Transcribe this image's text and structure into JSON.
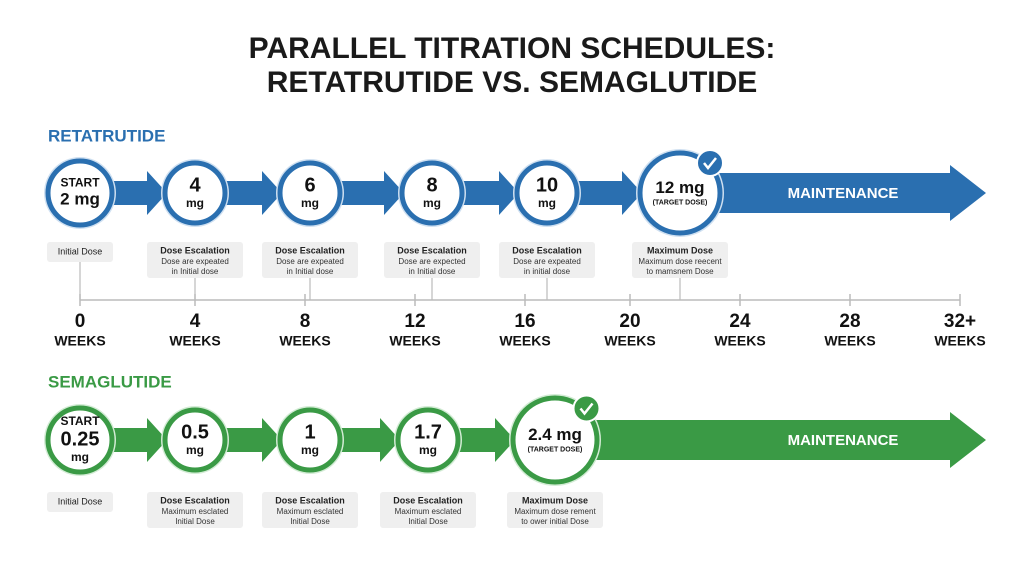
{
  "title": [
    "PARALLEL TITRATION SCHEDULES:",
    "RETATRUTIDE VS. SEMAGLUTIDE"
  ],
  "timeline": [
    {
      "number": "0",
      "unit": "WEEKS"
    },
    {
      "number": "4",
      "unit": "WEEKS"
    },
    {
      "number": "8",
      "unit": "WEEKS"
    },
    {
      "number": "12",
      "unit": "WEEKS"
    },
    {
      "number": "16",
      "unit": "WEEKS"
    },
    {
      "number": "20",
      "unit": "WEEKS"
    },
    {
      "number": "24",
      "unit": "WEEKS"
    },
    {
      "number": "28",
      "unit": "WEEKS"
    },
    {
      "number": "32+",
      "unit": "WEEKS"
    }
  ],
  "schedules": [
    {
      "name": "RETATRUTIDE",
      "maintenance": "MAINTENANCE",
      "steps": [
        {
          "lines": [
            "START",
            "2 mg"
          ],
          "note": {
            "title": "Initial Dose",
            "lines": []
          }
        },
        {
          "lines": [
            "4",
            "mg"
          ],
          "note": {
            "title": "Dose Escalation",
            "lines": [
              "Dose are expeated",
              "in Initial dose"
            ]
          }
        },
        {
          "lines": [
            "6",
            "mg"
          ],
          "note": {
            "title": "Dose Escalation",
            "lines": [
              "Dose are expeated",
              "in Initial dose"
            ]
          }
        },
        {
          "lines": [
            "8",
            "mg"
          ],
          "note": {
            "title": "Dose Escalation",
            "lines": [
              "Dose are expected",
              "in Initial dose"
            ]
          }
        },
        {
          "lines": [
            "10",
            "mg"
          ],
          "note": {
            "title": "Dose Escalation",
            "lines": [
              "Dose are expeated",
              "in initial dose"
            ]
          }
        },
        {
          "lines": [
            "12 mg",
            "(TARGET DOSE)"
          ],
          "note": {
            "title": "Maximum Dose",
            "lines": [
              "Maximum dose reecent",
              "to mamsnem Dose"
            ]
          }
        }
      ]
    },
    {
      "name": "SEMAGLUTIDE",
      "maintenance": "MAINTENANCE",
      "steps": [
        {
          "lines": [
            "START",
            "0.25",
            "mg"
          ],
          "note": {
            "title": "Initial Dose",
            "lines": []
          }
        },
        {
          "lines": [
            "0.5",
            "mg"
          ],
          "note": {
            "title": "Dose Escalation",
            "lines": [
              "Maximum esclated",
              "Initial Dose"
            ]
          }
        },
        {
          "lines": [
            "1",
            "mg"
          ],
          "note": {
            "title": "Dose Escalation",
            "lines": [
              "Maximum esclated",
              "Initial Dose"
            ]
          }
        },
        {
          "lines": [
            "1.7",
            "mg"
          ],
          "note": {
            "title": "Dose Escalation",
            "lines": [
              "Maximum esclated",
              "Initial Dose"
            ]
          }
        },
        {
          "lines": [
            "2.4 mg",
            "(TARGET DOSE)"
          ],
          "note": {
            "title": "Maximum Dose",
            "lines": [
              "Maximum dose rement",
              "to ower initial Dose"
            ]
          }
        }
      ]
    }
  ]
}
